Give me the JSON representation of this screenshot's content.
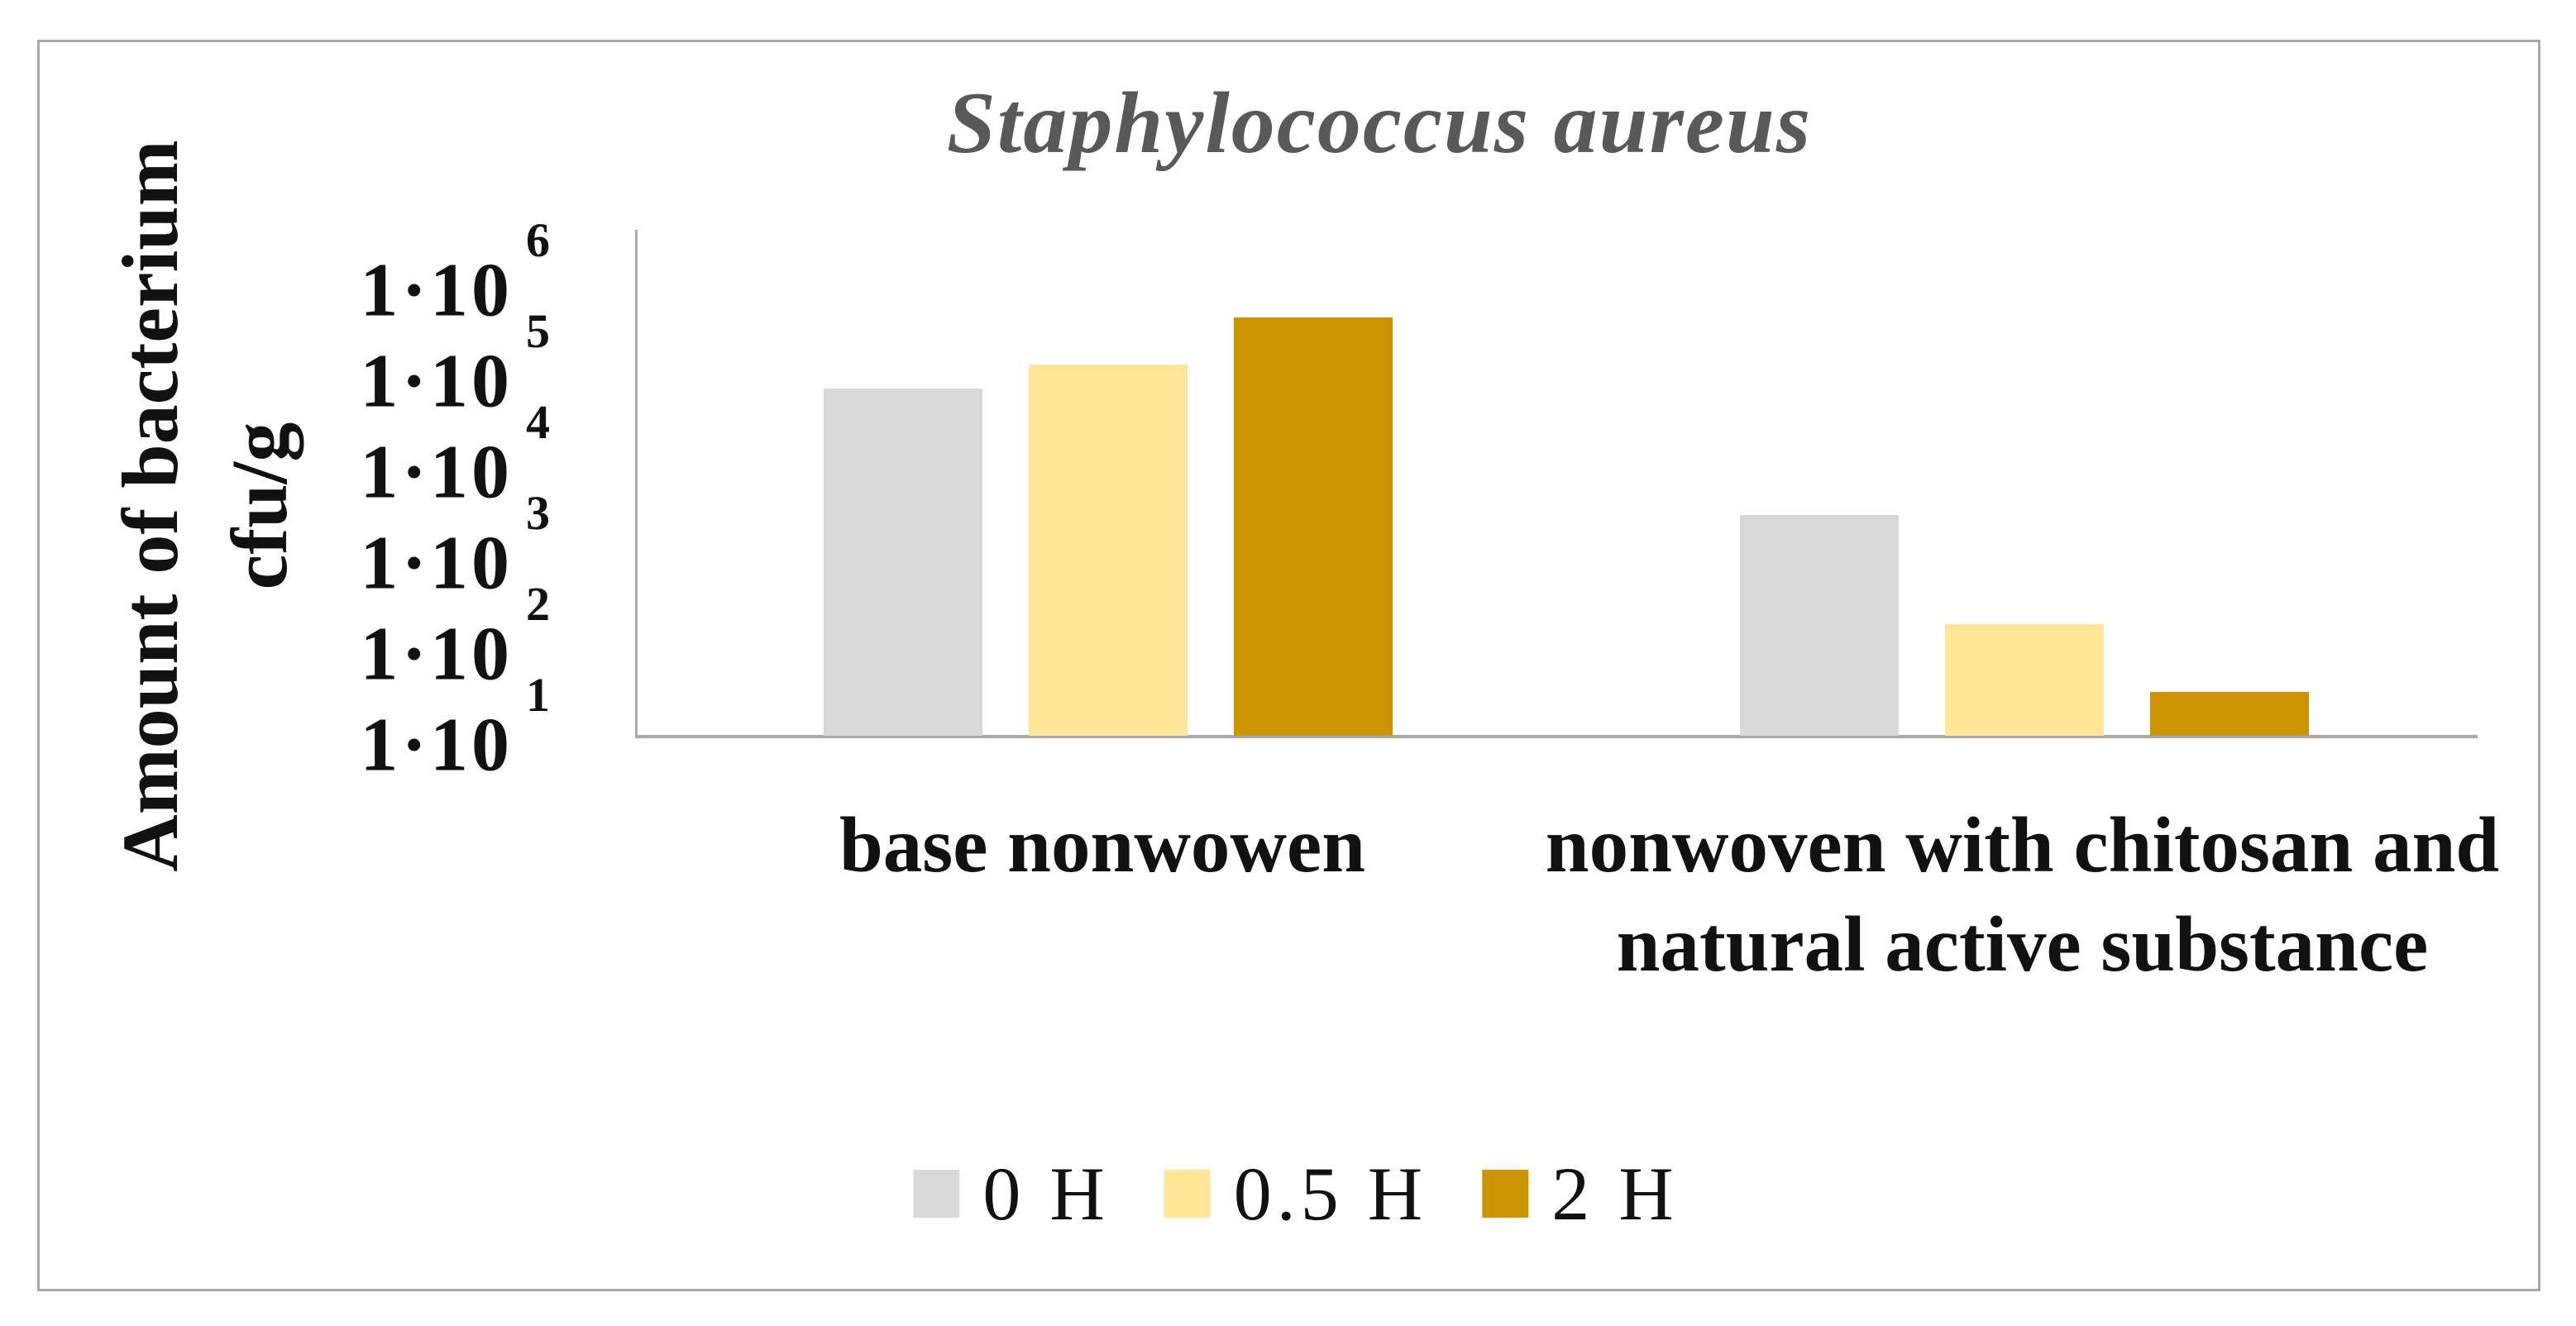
{
  "title": "Staphylococcus aureus",
  "y_axis": {
    "label_lines": [
      "Amount of bacterium",
      "cfu/g"
    ],
    "tick_prefix": "1·10",
    "tick_exponents": [
      "6",
      "5",
      "4",
      "3",
      "2",
      "1"
    ]
  },
  "x_axis": {
    "categories": [
      "base nonwowen",
      "nonwoven with chitosan and natural active substance"
    ]
  },
  "legend": {
    "items": [
      "0 H",
      "0.5 H",
      "2 H"
    ]
  },
  "colors": {
    "series_0h": "#D9D9D9",
    "series_05h": "#FFE699",
    "series_2h": "#CC9400",
    "axis_line": "#A9A9A9",
    "frame_border": "#A9A9A9",
    "title_text": "#595959",
    "label_text": "#111111"
  },
  "chart_data": {
    "type": "bar",
    "scale": "log",
    "title": "Staphylococcus aureus",
    "ylabel": "Amount of bacterium cfu/g",
    "xlabel": "",
    "categories": [
      "base nonwowen",
      "nonwoven with chitosan and natural active substance"
    ],
    "series": [
      {
        "name": "0 H",
        "color": "#D9D9D9",
        "values": [
          55000,
          2200
        ]
      },
      {
        "name": "0.5 H",
        "color": "#FFE699",
        "values": [
          100000,
          140
        ]
      },
      {
        "name": "2 H",
        "color": "#CC9400",
        "values": [
          330000,
          25
        ]
      }
    ],
    "ylim": [
      10,
      1000000
    ],
    "ytick_labels": [
      "1·10⁶",
      "1·10⁵",
      "1·10⁴",
      "1·10³",
      "1·10²",
      "1·10¹"
    ],
    "grid": false,
    "legend_position": "bottom"
  }
}
